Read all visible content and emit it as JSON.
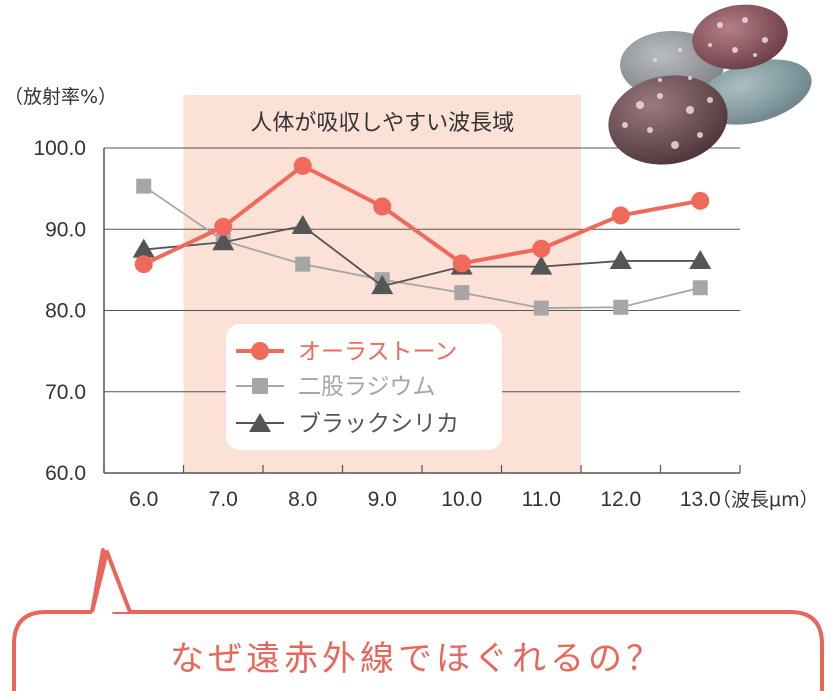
{
  "y_unit_label": "（放射率%）",
  "x_unit_label": "（波長μm）",
  "band_label": "人体が吸収しやすい波長域",
  "caption": "なぜ遠赤外線でほぐれるの？",
  "colors": {
    "aura": "#ef6a5a",
    "nimata": "#a6a6a6",
    "black": "#555555",
    "band": "#fbe1d6",
    "caption": "#e8675a",
    "grid": "#555555"
  },
  "chart_data": {
    "type": "line",
    "title": "",
    "xlabel": "（波長μm）",
    "ylabel": "（放射率%）",
    "x": [
      6.0,
      7.0,
      8.0,
      9.0,
      10.0,
      11.0,
      12.0,
      13.0
    ],
    "x_tick_labels": [
      "6.0",
      "7.0",
      "8.0",
      "9.0",
      "10.0",
      "11.0",
      "12.0",
      "13.0"
    ],
    "y_tick_labels": [
      "100.0",
      "90.0",
      "80.0",
      "70.0",
      "60.0"
    ],
    "y_ticks": [
      100,
      90,
      80,
      70,
      60
    ],
    "ylim": [
      60,
      100
    ],
    "xlim": [
      5.5,
      13.5
    ],
    "highlight_range": [
      6.5,
      11.5
    ],
    "grid": true,
    "legend_position": "center-left",
    "series": [
      {
        "name": "オーラストーン",
        "marker": "circle",
        "color": "#ef6a5a",
        "values": [
          85.7,
          90.3,
          97.8,
          92.8,
          85.8,
          87.6,
          91.7,
          93.5
        ]
      },
      {
        "name": "二股ラジウム",
        "marker": "square",
        "color": "#a6a6a6",
        "values": [
          95.3,
          88.6,
          85.7,
          83.8,
          82.2,
          80.3,
          80.4,
          82.8
        ]
      },
      {
        "name": "ブラックシリカ",
        "marker": "triangle",
        "color": "#555555",
        "values": [
          87.5,
          88.4,
          90.4,
          83.0,
          85.4,
          85.4,
          86.1,
          86.1
        ]
      }
    ]
  }
}
